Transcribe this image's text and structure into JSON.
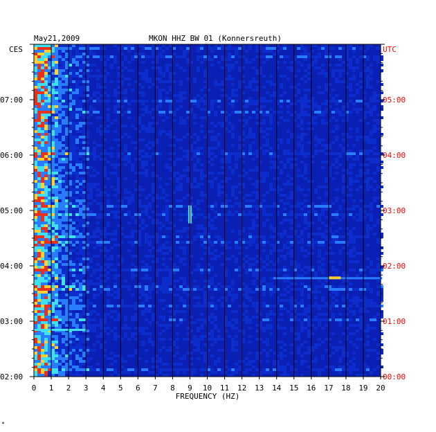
{
  "header": {
    "date": "May21,2009",
    "station": "MKON HHZ BW 01 (Konnersreuth)"
  },
  "chart_data": {
    "type": "heatmap",
    "title": "MKON HHZ BW 01 (Konnersreuth)",
    "date": "May21,2009",
    "xlabel": "FREQUENCY (HZ)",
    "xlim": [
      0,
      20
    ],
    "x_ticks": [
      "0",
      "1",
      "2",
      "3",
      "4",
      "5",
      "6",
      "7",
      "8",
      "9",
      "10",
      "11",
      "12",
      "13",
      "14",
      "15",
      "16",
      "17",
      "18",
      "19",
      "20"
    ],
    "left_axis_label": "CES",
    "right_axis_label": "UTC",
    "left_ticks": [
      "02:00",
      "03:00",
      "04:00",
      "05:00",
      "06:00",
      "07:00"
    ],
    "right_ticks": [
      "00:00",
      "01:00",
      "02:00",
      "03:00",
      "04:00",
      "05:00"
    ],
    "time_range_utc": [
      "00:00",
      "06:00"
    ],
    "colors": {
      "background": "#0a1fb4",
      "low": "#0d2ccc",
      "mid": "#2a7cff",
      "high": "#3fe0f0",
      "peak": "#ffd030",
      "hot": "#e83020",
      "left_axis_text": "#000000",
      "right_axis_text": "#ff0000",
      "gridline": "#000000"
    },
    "grid": true,
    "notable_features": [
      {
        "freq_hz": [
          17.0,
          17.7
        ],
        "time_utc": "01:47",
        "description": "narrow high-energy band"
      },
      {
        "freq_hz": [
          8.9,
          9.1
        ],
        "time_utc": "02:55",
        "description": "short vertical streak"
      },
      {
        "freq_hz": [
          0.0,
          3.0
        ],
        "time_utc": "00:51",
        "description": "broad band"
      }
    ]
  },
  "footnote": "*"
}
